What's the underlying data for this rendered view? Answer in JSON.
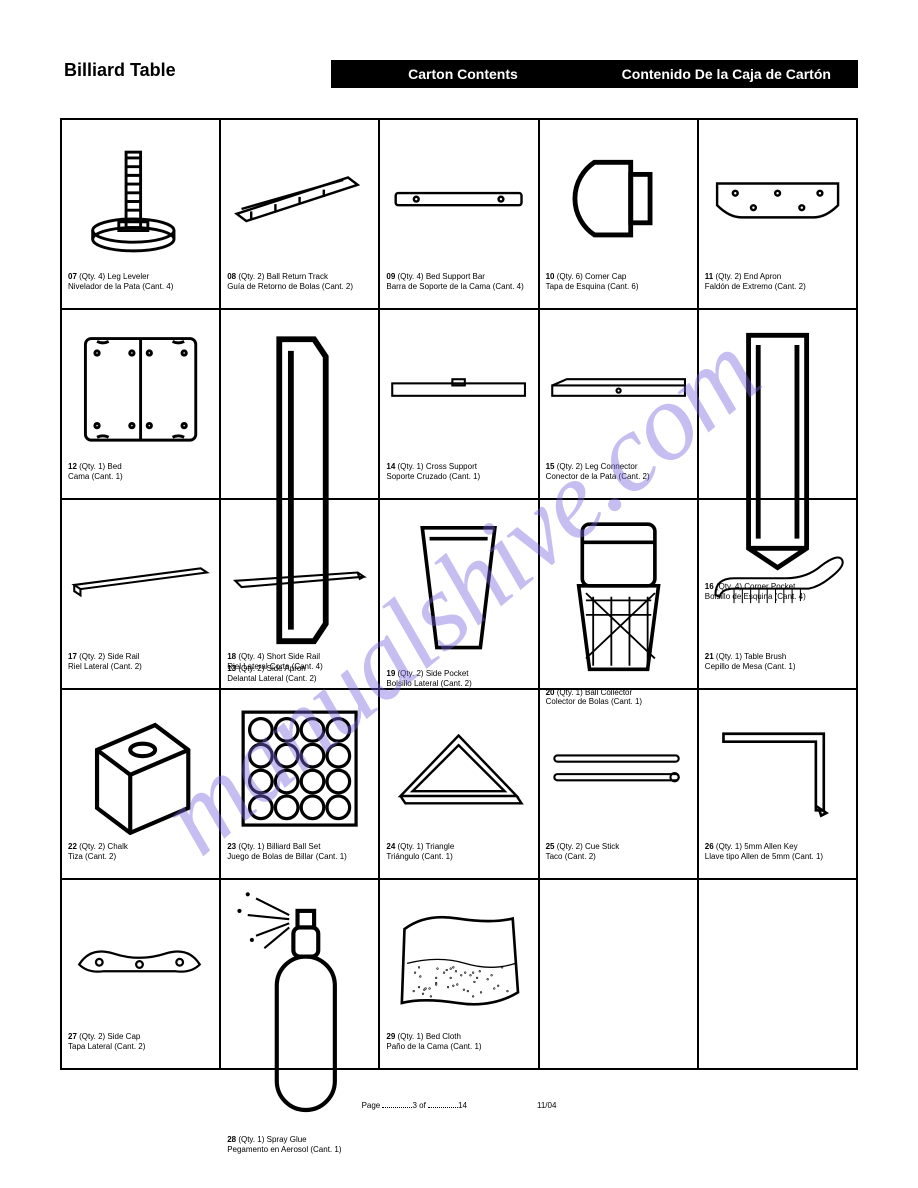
{
  "header": {
    "left": "Billiard Table",
    "mid": "Carton Contents",
    "right": "Contenido De la Caja de Cartón"
  },
  "watermark": "manualshive.com",
  "footer": {
    "page_label": "Page",
    "of_label": "of",
    "page_num": "3",
    "page_total": "14",
    "date": "11/04"
  },
  "cells": [
    {
      "code": "07",
      "qty_en": "(Qty. 4)",
      "name_en": "Leg Leveler",
      "name_es": "Nivelador de la Pata",
      "qty_es": "(Cant. 4)"
    },
    {
      "code": "08",
      "qty_en": "(Qty. 2)",
      "name_en": "Ball Return Track",
      "name_es": "Guía de Retorno de Bolas",
      "qty_es": "(Cant. 2)"
    },
    {
      "code": "09",
      "qty_en": "(Qty. 4)",
      "name_en": "Bed Support Bar",
      "name_es": "Barra de Soporte de la Cama",
      "qty_es": "(Cant. 4)"
    },
    {
      "code": "10",
      "qty_en": "(Qty. 6)",
      "name_en": "Corner Cap",
      "name_es": "Tapa de Esquina",
      "qty_es": "(Cant. 6)"
    },
    {
      "code": "11",
      "qty_en": "(Qty. 2)",
      "name_en": "End Apron",
      "name_es": "Faldón de Extremo",
      "qty_es": "(Cant. 2)"
    },
    {
      "code": "12",
      "qty_en": "(Qty. 1)",
      "name_en": "Bed",
      "name_es": "Cama",
      "qty_es": "(Cant. 1)"
    },
    {
      "code": "13",
      "qty_en": "(Qty. 2)",
      "name_en": "Side Apron",
      "name_es": "Delantal Lateral",
      "qty_es": "(Cant. 2)"
    },
    {
      "code": "14",
      "qty_en": "(Qty. 1)",
      "name_en": "Cross Support",
      "name_es": "Soporte Cruzado",
      "qty_es": "(Cant. 1)"
    },
    {
      "code": "15",
      "qty_en": "(Qty. 2)",
      "name_en": "Leg Connector",
      "name_es": "Conector de la Pata",
      "qty_es": "(Cant. 2)"
    },
    {
      "code": "16",
      "qty_en": "(Qty. 4)",
      "name_en": "Corner Pocket",
      "name_es": "Bolsillo de Esquina",
      "qty_es": "(Cant. 4)"
    },
    {
      "code": "17",
      "qty_en": "(Qty. 2)",
      "name_en": "Side Rail",
      "name_es": "Riel Lateral",
      "qty_es": "(Cant. 2)"
    },
    {
      "code": "18",
      "qty_en": "(Qty. 4)",
      "name_en": "Short Side Rail",
      "name_es": "Riel Lateral Corto",
      "qty_es": "(Cant. 4)"
    },
    {
      "code": "19",
      "qty_en": "(Qty. 2)",
      "name_en": "Side Pocket",
      "name_es": "Bolsillo Lateral",
      "qty_es": "(Cant. 2)"
    },
    {
      "code": "20",
      "qty_en": "(Qty. 1)",
      "name_en": "Ball Collector",
      "name_es": "Colector de Bolas",
      "qty_es": "(Cant. 1)"
    },
    {
      "code": "21",
      "qty_en": "(Qty. 1)",
      "name_en": "Table Brush",
      "name_es": "Cepillo de Mesa",
      "qty_es": "(Cant. 1)"
    },
    {
      "code": "22",
      "qty_en": "(Qty. 2)",
      "name_en": "Chalk",
      "name_es": "Tiza",
      "qty_es": "(Cant. 2)"
    },
    {
      "code": "23",
      "qty_en": "(Qty. 1)",
      "name_en": "Billiard Ball Set",
      "name_es": "Juego de Bolas de Billar",
      "qty_es": "(Cant. 1)"
    },
    {
      "code": "24",
      "qty_en": "(Qty. 1)",
      "name_en": "Triangle",
      "name_es": "Triángulo",
      "qty_es": "(Cant. 1)"
    },
    {
      "code": "25",
      "qty_en": "(Qty. 2)",
      "name_en": "Cue Stick",
      "name_es": "Taco",
      "qty_es": "(Cant. 2)"
    },
    {
      "code": "26",
      "qty_en": "(Qty. 1)",
      "name_en": "5mm Allen Key",
      "name_es": "Llave tipo Allen de 5mm",
      "qty_es": "(Cant. 1)"
    },
    {
      "code": "27",
      "qty_en": "(Qty. 2)",
      "name_en": "Side Cap",
      "name_es": "Tapa Lateral",
      "qty_es": "(Cant. 2)"
    },
    {
      "code": "28",
      "qty_en": "(Qty. 1)",
      "name_en": "Spray Glue",
      "name_es": "Pegamento en Aerosol",
      "qty_es": "(Cant. 1)"
    },
    {
      "code": "29",
      "qty_en": "(Qty. 1)",
      "name_en": "Bed Cloth",
      "name_es": "Paño de la Cama",
      "qty_es": "(Cant. 1)"
    },
    {
      "empty": true
    },
    {
      "empty": true
    }
  ]
}
